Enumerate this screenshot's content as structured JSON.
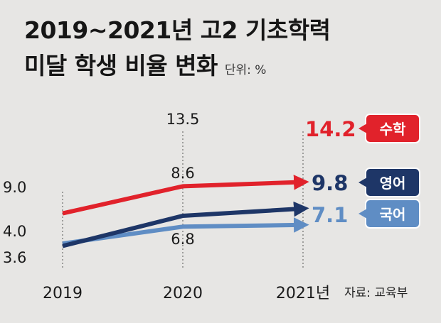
{
  "title_line1": "2019~2021년 고2 기초학력",
  "title_line2": "미달 학생 비율 변화",
  "unit": "단위: %",
  "source": "자료: 교육부",
  "colors": {
    "background": "#e7e6e4",
    "math": "#e1222b",
    "english": "#1e3667",
    "korean": "#5f8dc4"
  },
  "chart_data": {
    "type": "line",
    "title": "2019~2021년 고2 기초학력 미달 학생 비율 변화",
    "unit": "%",
    "x": [
      "2019",
      "2020",
      "2021년"
    ],
    "series": [
      {
        "name": "수학",
        "values": [
          9.0,
          13.5,
          14.2
        ],
        "labels": [
          "9.0",
          "13.5",
          "14.2"
        ],
        "color": "#e1222b"
      },
      {
        "name": "영어",
        "values": [
          3.6,
          8.6,
          9.8
        ],
        "labels": [
          "3.6",
          "8.6",
          "9.8"
        ],
        "color": "#1e3667"
      },
      {
        "name": "국어",
        "values": [
          4.0,
          6.8,
          7.1
        ],
        "labels": [
          "4.0",
          "6.8",
          "7.1"
        ],
        "color": "#5f8dc4"
      }
    ]
  }
}
